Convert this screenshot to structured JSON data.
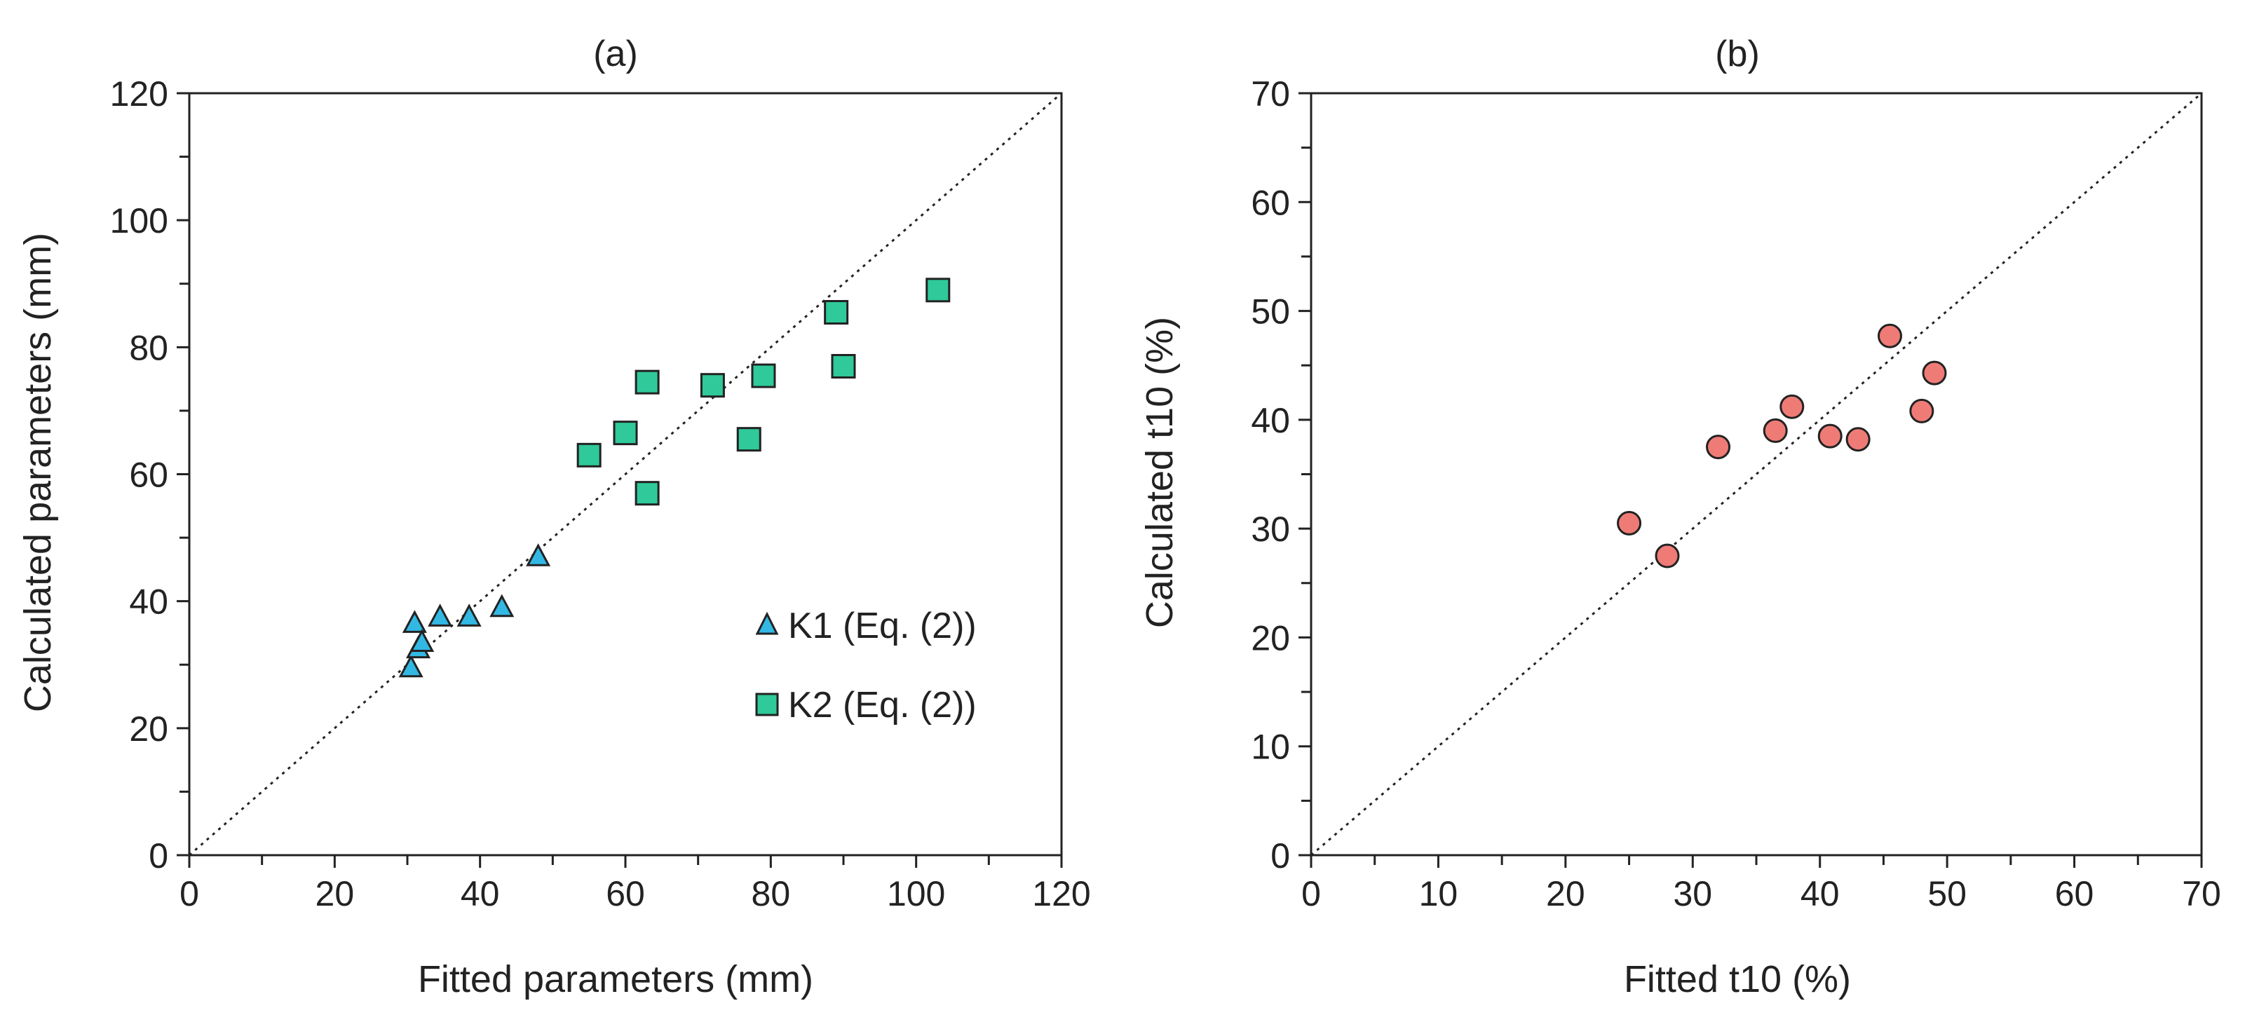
{
  "chart_data": [
    {
      "type": "scatter",
      "panel": "a",
      "title": "(a)",
      "xlabel": "Fitted parameters (mm)",
      "ylabel": "Calculated parameters (mm)",
      "xlim": [
        0,
        120
      ],
      "ylim": [
        0,
        120
      ],
      "xticks": [
        0,
        20,
        40,
        60,
        80,
        100,
        120
      ],
      "yticks": [
        0,
        20,
        40,
        60,
        80,
        100,
        120
      ],
      "minor_tick_step": 10,
      "grid": false,
      "reference_line": "1:1 dotted",
      "legend_position": "bottom-right",
      "series": [
        {
          "name": "K1 (Eq. (2))",
          "marker": "triangle",
          "color": "#33b8e4",
          "x": [
            30.5,
            31.5,
            31.0,
            32.0,
            34.5,
            38.5,
            43.0,
            48.0
          ],
          "y": [
            29.5,
            32.5,
            36.5,
            33.5,
            37.5,
            37.5,
            39.0,
            47.0
          ]
        },
        {
          "name": "K2 (Eq. (2))",
          "marker": "square",
          "color": "#2fc99a",
          "x": [
            55.0,
            60.0,
            63.0,
            63.0,
            72.0,
            77.0,
            79.0,
            89.0,
            90.0,
            103.0
          ],
          "y": [
            63.0,
            66.5,
            74.5,
            57.0,
            74.0,
            65.5,
            75.5,
            85.5,
            77.0,
            89.0
          ]
        }
      ]
    },
    {
      "type": "scatter",
      "panel": "b",
      "title": "(b)",
      "xlabel": "Fitted t10 (%)",
      "ylabel": "Calculated t10 (%)",
      "xlim": [
        0,
        70
      ],
      "ylim": [
        0,
        70
      ],
      "xticks": [
        0,
        10,
        20,
        30,
        40,
        50,
        60,
        70
      ],
      "yticks": [
        0,
        10,
        20,
        30,
        40,
        50,
        60,
        70
      ],
      "minor_tick_step": 5,
      "grid": false,
      "reference_line": "1:1 dotted",
      "series": [
        {
          "name": "t10",
          "marker": "circle",
          "color": "#ef7b77",
          "x": [
            25.0,
            28.0,
            32.0,
            36.5,
            37.8,
            40.8,
            43.0,
            45.5,
            48.0,
            49.0
          ],
          "y": [
            30.5,
            27.5,
            37.5,
            39.0,
            41.2,
            38.5,
            38.2,
            47.7,
            40.8,
            44.3
          ]
        }
      ]
    }
  ]
}
